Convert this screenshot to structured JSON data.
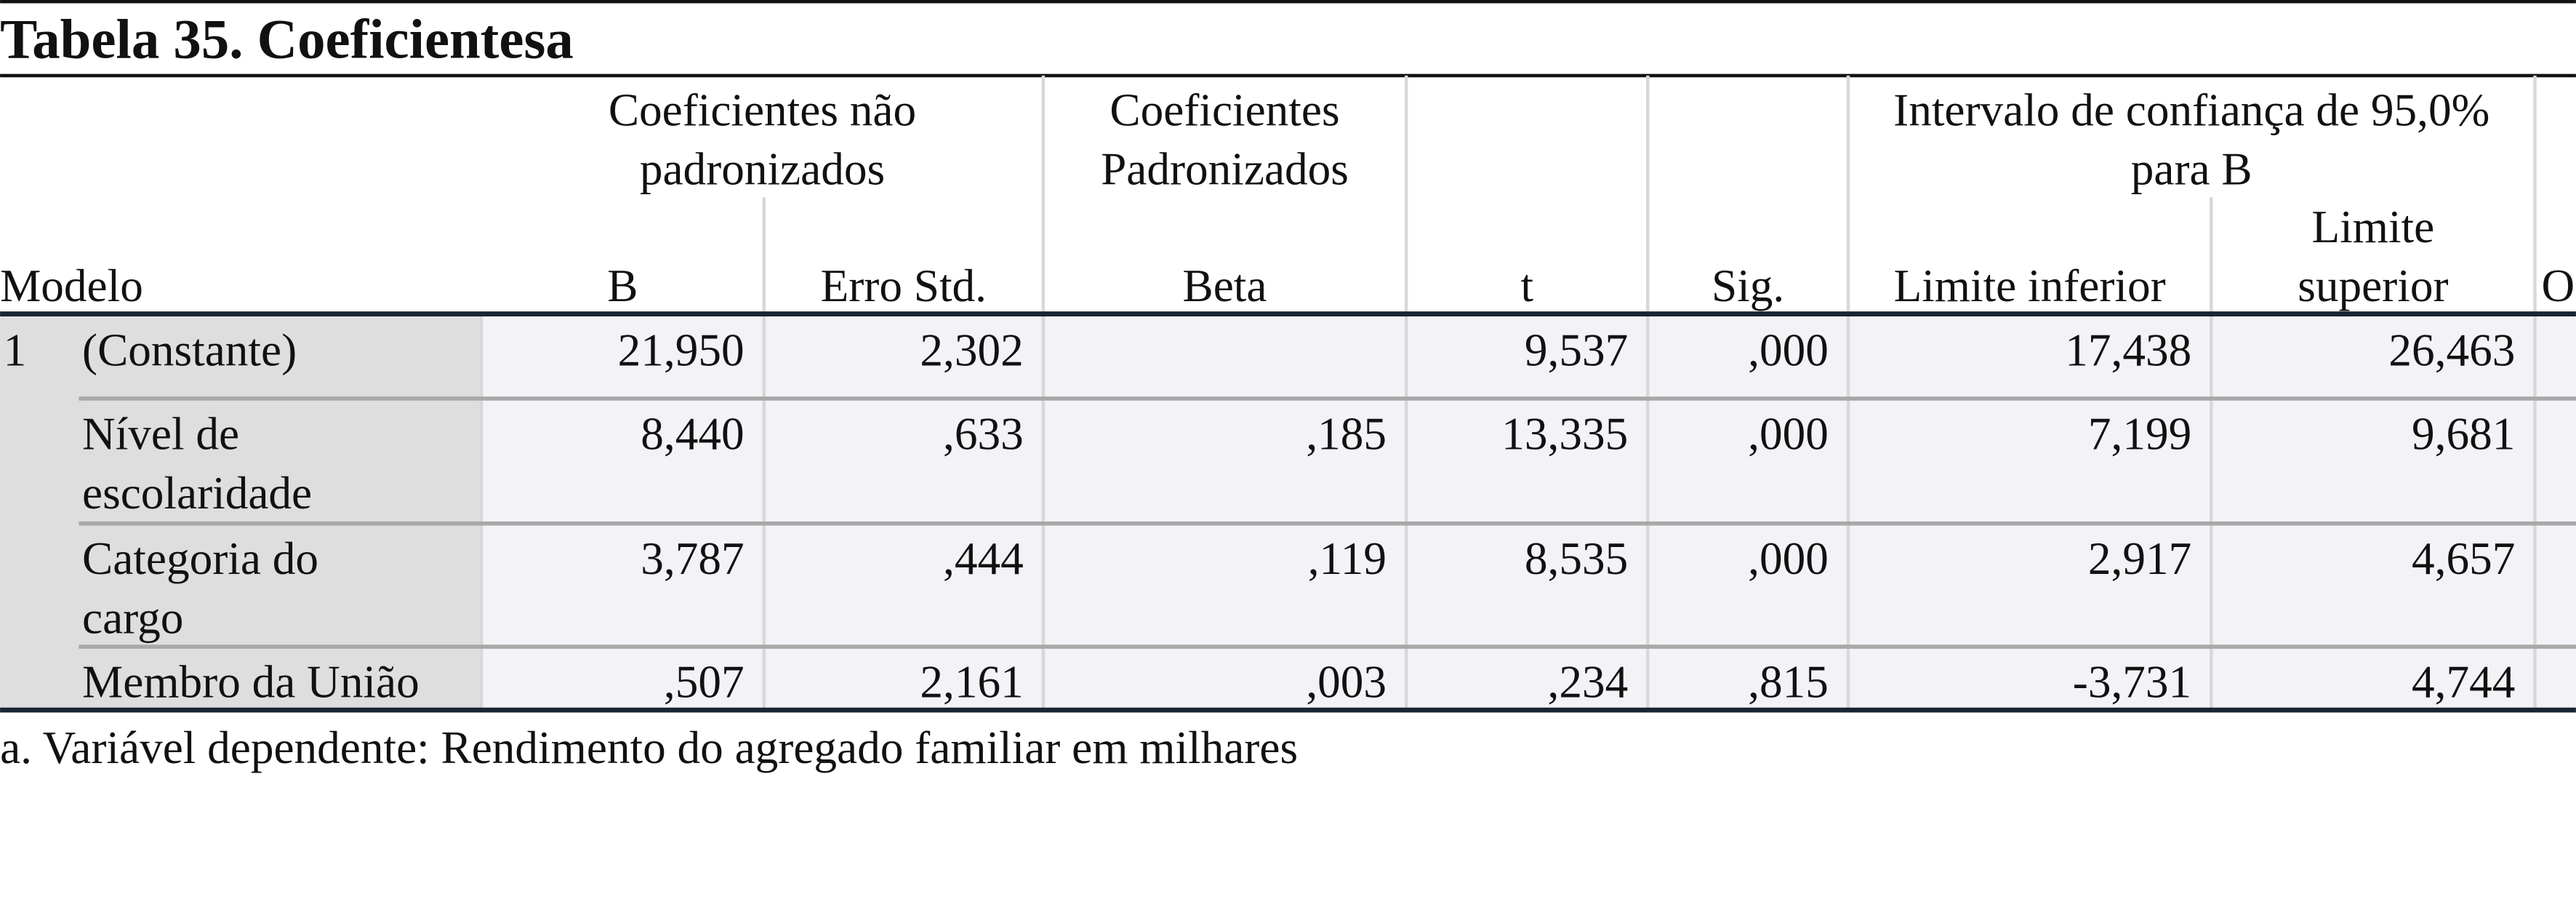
{
  "title": "Tabela 35. Coeficientesa",
  "table": {
    "group_headers": [
      [
        "Coeficientes não",
        "padronizados"
      ],
      [
        "Coeficientes",
        "Padronizados"
      ],
      [
        "Intervalo de confiança de 95,0%",
        "para B"
      ]
    ],
    "columns": [
      [
        "Modelo"
      ],
      [
        "B"
      ],
      [
        "Erro Std."
      ],
      [
        "Beta"
      ],
      [
        "t"
      ],
      [
        "Sig."
      ],
      [
        "Limite inferior"
      ],
      [
        "Limite",
        "superior"
      ],
      [
        "O"
      ]
    ],
    "rows": [
      {
        "model": "1",
        "label": [
          "(Constante)"
        ],
        "cells": [
          "21,950",
          "2,302",
          null,
          "9,537",
          ",000",
          "17,438",
          "26,463"
        ]
      },
      {
        "label": [
          "Nível de",
          "escolaridade"
        ],
        "cells": [
          "8,440",
          ",633",
          ",185",
          "13,335",
          ",000",
          "7,199",
          "9,681"
        ]
      },
      {
        "label": [
          "Categoria do",
          "cargo"
        ],
        "cells": [
          "3,787",
          ",444",
          ",119",
          "8,535",
          ",000",
          "2,917",
          "4,657"
        ]
      },
      {
        "label": [
          "Membro da União"
        ],
        "cells": [
          ",507",
          "2,161",
          ",003",
          ",234",
          ",815",
          "-3,731",
          "4,744"
        ]
      }
    ]
  },
  "footnote": "a. Variável dependente: Rendimento do agregado familiar em milhares"
}
